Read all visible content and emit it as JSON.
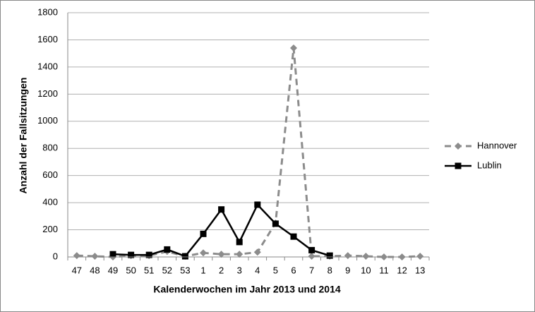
{
  "chart_data": {
    "type": "line",
    "x_label": "Kalenderwochen im Jahr 2013 und 2014",
    "y_label": "Anzahl der Fallsitzungen",
    "categories": [
      "47",
      "48",
      "49",
      "50",
      "51",
      "52",
      "53",
      "1",
      "2",
      "3",
      "4",
      "5",
      "6",
      "7",
      "8",
      "9",
      "10",
      "11",
      "12",
      "13"
    ],
    "series": [
      {
        "name": "Hannover",
        "color": "#8c8c8c",
        "style": "dashed",
        "marker": "diamond",
        "values": [
          10,
          5,
          0,
          10,
          10,
          40,
          5,
          30,
          20,
          20,
          35,
          250,
          1540,
          5,
          5,
          10,
          5,
          0,
          0,
          5
        ]
      },
      {
        "name": "Lublin",
        "color": "#000000",
        "style": "solid",
        "marker": "square",
        "values": [
          null,
          null,
          20,
          15,
          15,
          55,
          5,
          170,
          350,
          110,
          385,
          245,
          150,
          50,
          10,
          null,
          null,
          null,
          null,
          null
        ]
      }
    ],
    "ylim": [
      0,
      1800
    ],
    "yticks": [
      0,
      200,
      400,
      600,
      800,
      1000,
      1200,
      1400,
      1600,
      1800
    ],
    "grid": true,
    "legend": "right"
  }
}
